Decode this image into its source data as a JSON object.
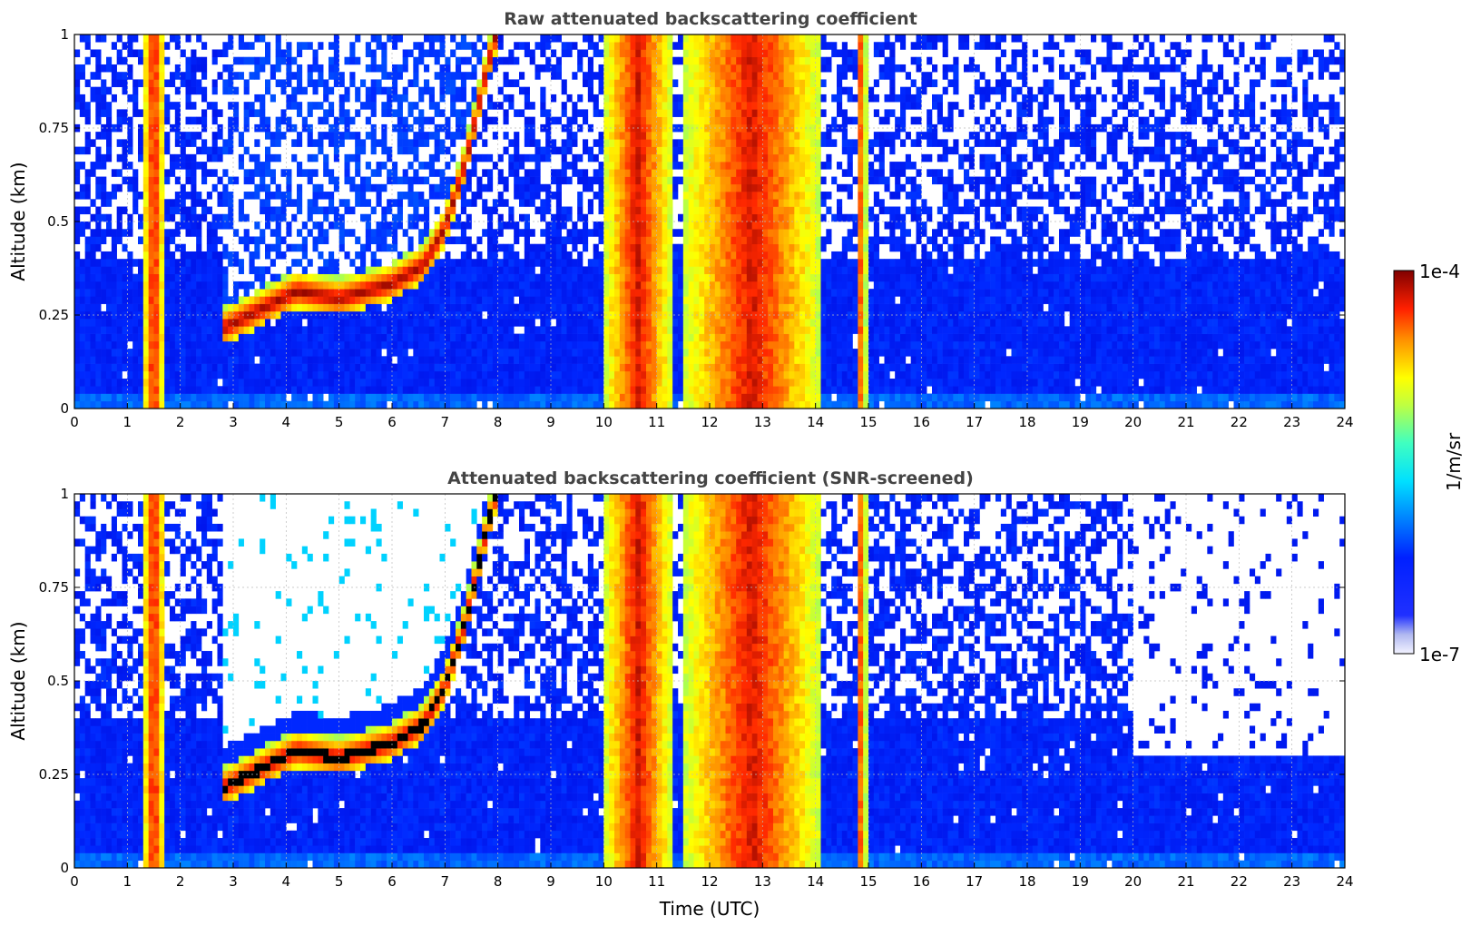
{
  "figure": {
    "xlabel": "Time (UTC)",
    "ylabel": "Altitude (km)",
    "x_ticks": [
      "0",
      "1",
      "2",
      "3",
      "4",
      "5",
      "6",
      "7",
      "8",
      "9",
      "10",
      "11",
      "12",
      "13",
      "14",
      "15",
      "16",
      "17",
      "18",
      "19",
      "20",
      "21",
      "22",
      "23",
      "24"
    ],
    "y_ticks": [
      "0",
      "0.25",
      "0.5",
      "0.75",
      "1"
    ],
    "colorbar": {
      "label": "1/m/sr",
      "min_label": "1e-7",
      "max_label": "1e-4",
      "colormap": "jet",
      "scale": "log"
    }
  },
  "chart_data": [
    {
      "type": "heatmap",
      "title": "Raw attenuated backscattering coefficient",
      "xlabel": "",
      "ylabel": "Altitude (km)",
      "xlim": [
        0,
        24
      ],
      "ylim": [
        0,
        1
      ],
      "grid": true,
      "cloud_base_layer_km": {
        "time_utc": [
          2.8,
          3.5,
          4.2,
          5.0,
          5.5,
          6.0,
          6.6,
          7.0,
          7.4,
          7.8,
          8.0
        ],
        "altitude_km": [
          0.2,
          0.25,
          0.3,
          0.28,
          0.3,
          0.32,
          0.37,
          0.47,
          0.65,
          0.9,
          1.0
        ]
      },
      "high_signal_columns_utc": [
        [
          1.3,
          1.7
        ],
        [
          10.0,
          11.3
        ],
        [
          11.5,
          14.1
        ],
        [
          14.8,
          14.95
        ]
      ]
    },
    {
      "type": "heatmap",
      "title": "Attenuated backscattering coefficient (SNR-screened)",
      "xlabel": "Time (UTC)",
      "ylabel": "Altitude (km)",
      "xlim": [
        0,
        24
      ],
      "ylim": [
        0,
        1
      ],
      "grid": true,
      "cloud_base_layer_km": {
        "time_utc": [
          2.8,
          3.5,
          4.2,
          5.0,
          5.5,
          6.0,
          6.6,
          7.0,
          7.4,
          7.8,
          8.0
        ],
        "altitude_km": [
          0.2,
          0.25,
          0.3,
          0.28,
          0.3,
          0.32,
          0.37,
          0.47,
          0.65,
          0.9,
          1.0
        ]
      },
      "high_signal_columns_utc": [
        [
          1.3,
          1.7
        ],
        [
          10.0,
          11.3
        ],
        [
          11.5,
          14.1
        ],
        [
          14.8,
          14.95
        ]
      ],
      "screened_top_after_20utc_km": 0.3
    }
  ]
}
